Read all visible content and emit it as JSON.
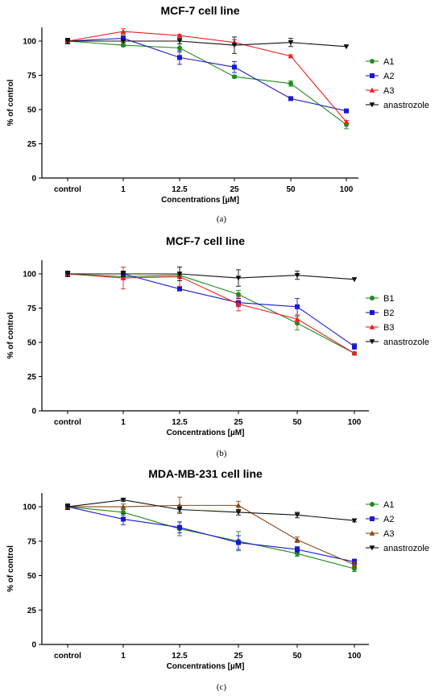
{
  "colors": {
    "green": "#1f8b1f",
    "blue": "#1a1acc",
    "red": "#ee2020",
    "brown": "#8b4513",
    "black": "#111111"
  },
  "chart_data": [
    {
      "type": "line",
      "title": "MCF-7 cell line",
      "caption": "(a)",
      "xlabel": "Concentrations [µM]",
      "ylabel": "% of control",
      "categories": [
        "control",
        "1",
        "12.5",
        "25",
        "50",
        "100"
      ],
      "ylim": [
        0,
        110
      ],
      "yticks": [
        0,
        25,
        50,
        75,
        100
      ],
      "legend_position": "right",
      "series": [
        {
          "name": "A1",
          "color": "#1f8b1f",
          "marker": "circle",
          "values": [
            100,
            97,
            95,
            74,
            69,
            39
          ],
          "errors": [
            2,
            1,
            3,
            1,
            2,
            3
          ]
        },
        {
          "name": "A2",
          "color": "#1a1acc",
          "marker": "square",
          "values": [
            100,
            102,
            88,
            81,
            58,
            49
          ],
          "errors": [
            2,
            2,
            5,
            4,
            1,
            1
          ]
        },
        {
          "name": "A3",
          "color": "#ee2020",
          "marker": "triangle-up",
          "values": [
            100,
            107,
            104,
            99,
            89,
            41
          ],
          "errors": [
            2,
            2,
            1,
            2,
            1,
            1
          ]
        },
        {
          "name": "anastrozole",
          "color": "#111111",
          "marker": "triangle-down",
          "values": [
            100,
            100,
            100,
            97,
            99,
            96
          ],
          "errors": [
            2,
            1,
            2,
            6,
            3,
            0
          ]
        }
      ]
    },
    {
      "type": "line",
      "title": "MCF-7 cell line",
      "caption": "(b)",
      "xlabel": "Concentrations [µM]",
      "ylabel": "% of control",
      "categories": [
        "control",
        "1",
        "12.5",
        "25",
        "50",
        "100"
      ],
      "ylim": [
        0,
        110
      ],
      "yticks": [
        0,
        25,
        50,
        75,
        100
      ],
      "legend_position": "right",
      "series": [
        {
          "name": "B1",
          "color": "#1f8b1f",
          "marker": "circle",
          "values": [
            100,
            98,
            99,
            85,
            64,
            42
          ],
          "errors": [
            2,
            2,
            2,
            3,
            5,
            1
          ]
        },
        {
          "name": "B2",
          "color": "#1a1acc",
          "marker": "square",
          "values": [
            100,
            100,
            89,
            79,
            76,
            47
          ],
          "errors": [
            2,
            2,
            1,
            3,
            6,
            2
          ]
        },
        {
          "name": "B3",
          "color": "#ee2020",
          "marker": "triangle-up",
          "values": [
            100,
            97,
            98,
            78,
            67,
            42
          ],
          "errors": [
            2,
            8,
            7,
            5,
            3,
            1
          ]
        },
        {
          "name": "anastrozole",
          "color": "#111111",
          "marker": "triangle-down",
          "values": [
            100,
            100,
            100,
            97,
            99,
            96
          ],
          "errors": [
            2,
            2,
            5,
            6,
            3,
            0
          ]
        }
      ]
    },
    {
      "type": "line",
      "title": "MDA-MB-231 cell line",
      "caption": "(c)",
      "xlabel": "Concentrations [µM]",
      "ylabel": "% of control",
      "categories": [
        "control",
        "1",
        "12.5",
        "25",
        "50",
        "100"
      ],
      "ylim": [
        0,
        110
      ],
      "yticks": [
        0,
        25,
        50,
        75,
        100
      ],
      "legend_position": "right",
      "series": [
        {
          "name": "A1",
          "color": "#1f8b1f",
          "marker": "circle",
          "values": [
            100,
            96,
            84,
            75,
            66,
            55
          ],
          "errors": [
            2,
            2,
            5,
            7,
            2,
            2
          ]
        },
        {
          "name": "A2",
          "color": "#1a1acc",
          "marker": "square",
          "values": [
            100,
            91,
            85,
            74,
            69,
            60
          ],
          "errors": [
            2,
            4,
            4,
            5,
            2,
            2
          ]
        },
        {
          "name": "A3",
          "color": "#8b4513",
          "marker": "triangle-up",
          "values": [
            100,
            100,
            101,
            101,
            76,
            58
          ],
          "errors": [
            2,
            2,
            6,
            3,
            2,
            2
          ]
        },
        {
          "name": "anastrozole",
          "color": "#111111",
          "marker": "triangle-down",
          "values": [
            100,
            105,
            98,
            96,
            94,
            90
          ],
          "errors": [
            2,
            1,
            2,
            2,
            2,
            1
          ]
        }
      ]
    }
  ]
}
